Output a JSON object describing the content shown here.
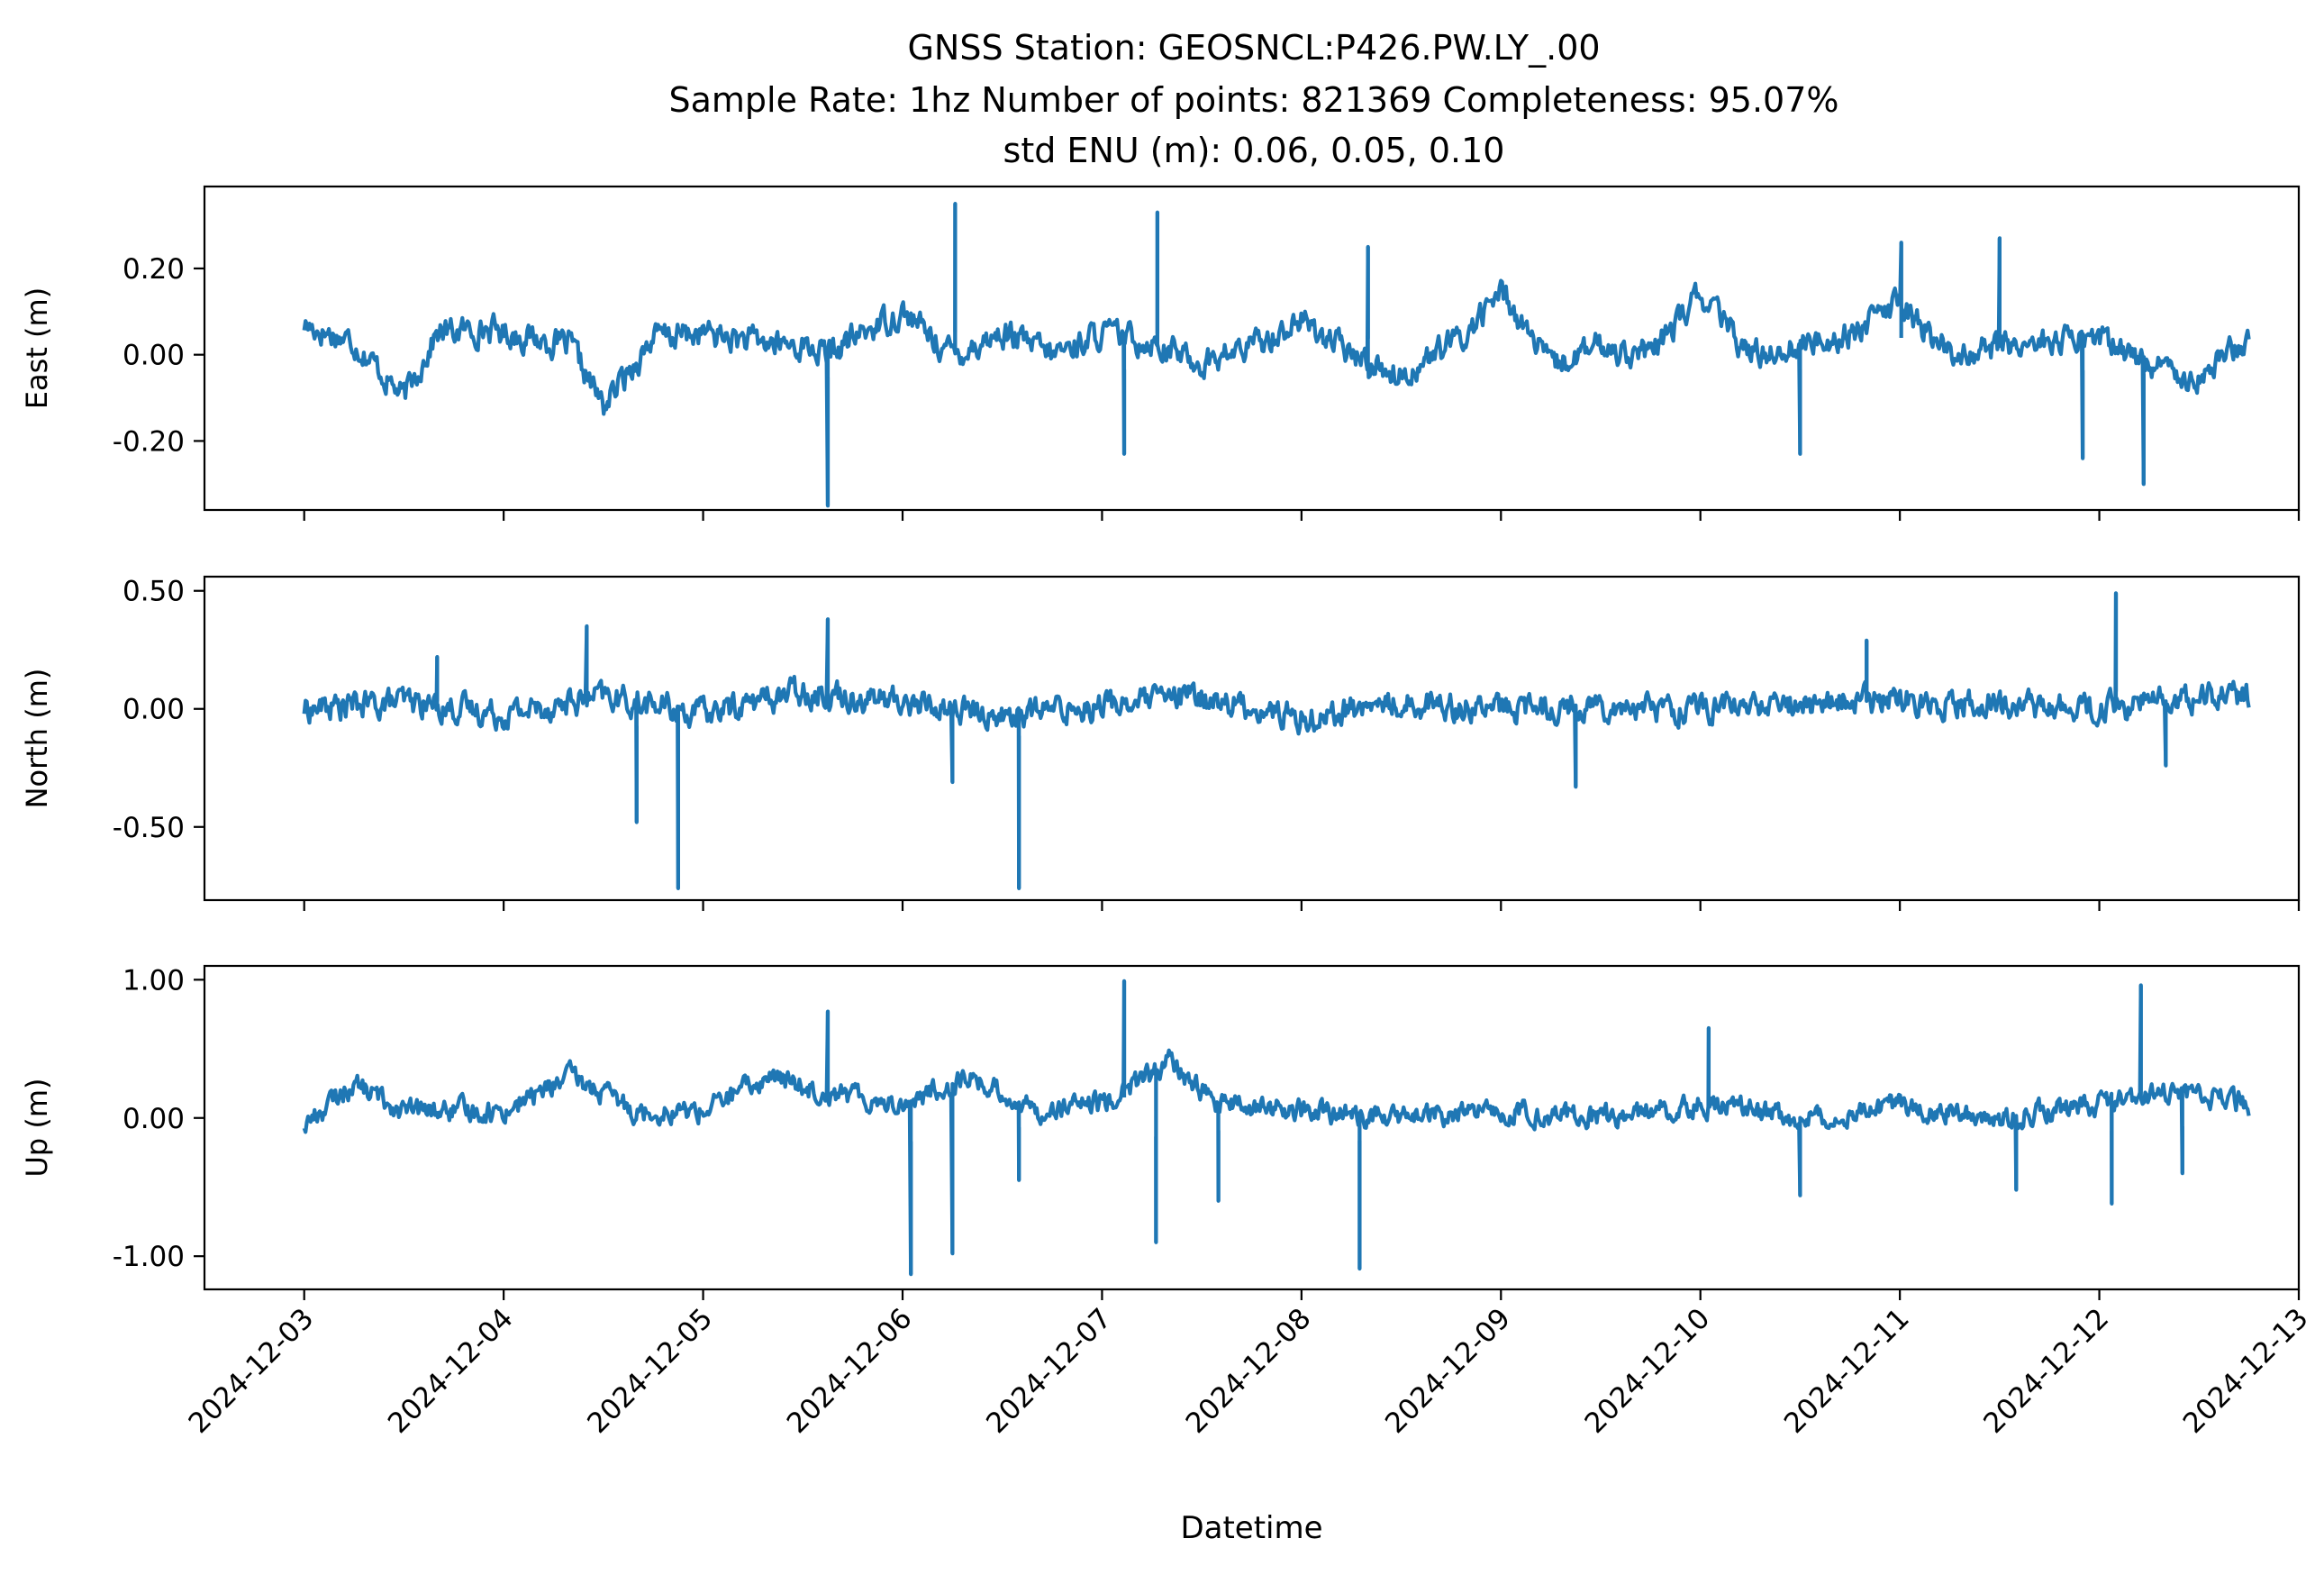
{
  "chart_data": [
    {
      "type": "line",
      "panel": "east",
      "title": [
        "GNSS Station: GEOSNCL:P426.PW.LY_.00",
        "Sample Rate: 1hz   Number of points: 821369    Completeness:  95.07%",
        "std ENU (m):  0.06, 0.05, 0.10"
      ],
      "ylabel": "East (m)",
      "ylim": [
        -0.36,
        0.39
      ],
      "yticks": [
        0.2,
        0.0,
        -0.2
      ],
      "ytick_labels": [
        "0.20",
        "0.00",
        "-0.20"
      ],
      "xlim": [
        "2024-12-02T12:00",
        "2024-12-13T00:00"
      ],
      "series": [
        {
          "color": "#1f77b4",
          "x": [
            "2024-12-03T00:00",
            "2024-12-03T06:00",
            "2024-12-03T12:00",
            "2024-12-03T16:00",
            "2024-12-03T22:00",
            "2024-12-04T08:00",
            "2024-12-04T12:00",
            "2024-12-04T18:00",
            "2024-12-05T00:00",
            "2024-12-05T06:00",
            "2024-12-05T12:00",
            "2024-12-05T15:00",
            "2024-12-05T20:00",
            "2024-12-06T00:00",
            "2024-12-06T06:00",
            "2024-12-06T12:00",
            "2024-12-06T18:00",
            "2024-12-07T00:00",
            "2024-12-07T06:00",
            "2024-12-07T12:00",
            "2024-12-07T18:00",
            "2024-12-08T00:00",
            "2024-12-08T06:00",
            "2024-12-08T12:00",
            "2024-12-08T20:00",
            "2024-12-09T00:00",
            "2024-12-09T06:00",
            "2024-12-09T12:00",
            "2024-12-09T18:00",
            "2024-12-10T00:00",
            "2024-12-10T06:00",
            "2024-12-10T12:00",
            "2024-12-10T18:00",
            "2024-12-11T00:00",
            "2024-12-11T06:00",
            "2024-12-11T12:00",
            "2024-12-11T18:00",
            "2024-12-12T00:00",
            "2024-12-12T06:00",
            "2024-12-12T12:00",
            "2024-12-12T18:00"
          ],
          "y": [
            0.07,
            0.03,
            -0.1,
            0.05,
            0.06,
            0.02,
            -0.12,
            0.04,
            0.05,
            0.03,
            0.02,
            0.0,
            0.06,
            0.1,
            0.0,
            0.05,
            0.0,
            0.05,
            0.03,
            -0.02,
            0.02,
            0.08,
            0.0,
            -0.05,
            0.05,
            0.15,
            -0.03,
            0.02,
            0.0,
            0.14,
            0.0,
            0.02,
            0.05,
            0.12,
            0.0,
            0.02,
            0.03,
            0.04,
            -0.02,
            -0.05,
            0.04
          ],
          "spikes": [
            {
              "x": "2024-12-05T15:00",
              "y": -0.35
            },
            {
              "x": "2024-12-06T06:20",
              "y": 0.35
            },
            {
              "x": "2024-12-07T02:40",
              "y": -0.23
            },
            {
              "x": "2024-12-07T06:40",
              "y": 0.33
            },
            {
              "x": "2024-12-08T08:00",
              "y": 0.25
            },
            {
              "x": "2024-12-10T12:00",
              "y": -0.23
            },
            {
              "x": "2024-12-11T00:10",
              "y": 0.26
            },
            {
              "x": "2024-12-11T12:00",
              "y": 0.27
            },
            {
              "x": "2024-12-11T22:00",
              "y": -0.24
            },
            {
              "x": "2024-12-12T05:20",
              "y": -0.3
            }
          ]
        }
      ]
    },
    {
      "type": "line",
      "panel": "north",
      "ylabel": "North (m)",
      "ylim": [
        -0.81,
        0.56
      ],
      "yticks": [
        0.5,
        0.0,
        -0.5
      ],
      "ytick_labels": [
        "0.50",
        "0.00",
        "-0.50"
      ],
      "xlim": [
        "2024-12-02T12:00",
        "2024-12-13T00:00"
      ],
      "series": [
        {
          "color": "#1f77b4",
          "x": [
            "2024-12-03T00:00",
            "2024-12-03T12:00",
            "2024-12-04T00:00",
            "2024-12-04T12:00",
            "2024-12-05T00:00",
            "2024-12-05T12:00",
            "2024-12-06T00:00",
            "2024-12-06T12:00",
            "2024-12-07T00:00",
            "2024-12-07T12:00",
            "2024-12-08T00:00",
            "2024-12-08T12:00",
            "2024-12-09T00:00",
            "2024-12-09T12:00",
            "2024-12-10T00:00",
            "2024-12-10T12:00",
            "2024-12-11T00:00",
            "2024-12-11T12:00",
            "2024-12-12T00:00",
            "2024-12-12T12:00",
            "2024-12-12T18:00"
          ],
          "y": [
            0.0,
            0.03,
            -0.02,
            0.05,
            -0.02,
            0.08,
            0.03,
            -0.03,
            0.02,
            0.05,
            -0.04,
            0.03,
            0.0,
            0.02,
            0.0,
            0.02,
            0.04,
            0.02,
            0.0,
            0.05,
            0.05
          ],
          "spikes": [
            {
              "x": "2024-12-03T16:00",
              "y": 0.22
            },
            {
              "x": "2024-12-04T10:00",
              "y": 0.35
            },
            {
              "x": "2024-12-04T16:00",
              "y": -0.48
            },
            {
              "x": "2024-12-04T21:00",
              "y": -0.76
            },
            {
              "x": "2024-12-05T15:00",
              "y": 0.38
            },
            {
              "x": "2024-12-06T06:00",
              "y": -0.31
            },
            {
              "x": "2024-12-06T14:00",
              "y": -0.76
            },
            {
              "x": "2024-12-09T09:00",
              "y": -0.33
            },
            {
              "x": "2024-12-10T20:00",
              "y": 0.29
            },
            {
              "x": "2024-12-12T02:00",
              "y": 0.49
            },
            {
              "x": "2024-12-12T08:00",
              "y": -0.24
            }
          ]
        }
      ]
    },
    {
      "type": "line",
      "panel": "up",
      "ylabel": "Up (m)",
      "ylim": [
        -1.24,
        1.1
      ],
      "yticks": [
        1.0,
        0.0,
        -1.0
      ],
      "ytick_labels": [
        "1.00",
        "0.00",
        "-1.00"
      ],
      "xlim": [
        "2024-12-02T12:00",
        "2024-12-13T00:00"
      ],
      "xlabel": "Datetime",
      "xticks": [
        "2024-12-03",
        "2024-12-04",
        "2024-12-05",
        "2024-12-06",
        "2024-12-07",
        "2024-12-08",
        "2024-12-09",
        "2024-12-10",
        "2024-12-11",
        "2024-12-12",
        "2024-12-13"
      ],
      "series": [
        {
          "color": "#1f77b4",
          "x": [
            "2024-12-03T00:00",
            "2024-12-03T06:00",
            "2024-12-03T12:00",
            "2024-12-04T00:00",
            "2024-12-04T08:00",
            "2024-12-04T16:00",
            "2024-12-05T00:00",
            "2024-12-05T08:00",
            "2024-12-05T14:00",
            "2024-12-06T00:00",
            "2024-12-06T08:00",
            "2024-12-06T16:00",
            "2024-12-07T00:00",
            "2024-12-07T08:00",
            "2024-12-07T14:00",
            "2024-12-08T00:00",
            "2024-12-08T12:00",
            "2024-12-09T00:00",
            "2024-12-09T12:00",
            "2024-12-10T00:00",
            "2024-12-10T12:00",
            "2024-12-11T00:00",
            "2024-12-11T12:00",
            "2024-12-12T00:00",
            "2024-12-12T08:00",
            "2024-12-12T18:00"
          ],
          "y": [
            -0.05,
            0.25,
            0.05,
            0.05,
            0.3,
            0.05,
            0.05,
            0.3,
            0.2,
            0.1,
            0.3,
            0.05,
            0.1,
            0.4,
            0.1,
            0.05,
            0.0,
            0.05,
            0.0,
            0.1,
            0.0,
            0.1,
            0.0,
            0.1,
            0.2,
            0.1
          ],
          "spikes": [
            {
              "x": "2024-12-05T15:00",
              "y": 0.77
            },
            {
              "x": "2024-12-06T01:00",
              "y": -1.13
            },
            {
              "x": "2024-12-06T06:00",
              "y": -0.98
            },
            {
              "x": "2024-12-06T14:00",
              "y": -0.45
            },
            {
              "x": "2024-12-07T02:40",
              "y": 0.99
            },
            {
              "x": "2024-12-07T06:30",
              "y": -0.9
            },
            {
              "x": "2024-12-07T14:00",
              "y": -0.6
            },
            {
              "x": "2024-12-08T07:00",
              "y": -1.09
            },
            {
              "x": "2024-12-10T01:00",
              "y": 0.65
            },
            {
              "x": "2024-12-10T12:00",
              "y": -0.56
            },
            {
              "x": "2024-12-11T14:00",
              "y": -0.52
            },
            {
              "x": "2024-12-12T01:30",
              "y": -0.62
            },
            {
              "x": "2024-12-12T05:00",
              "y": 0.96
            },
            {
              "x": "2024-12-12T10:00",
              "y": -0.4
            }
          ]
        }
      ]
    }
  ]
}
